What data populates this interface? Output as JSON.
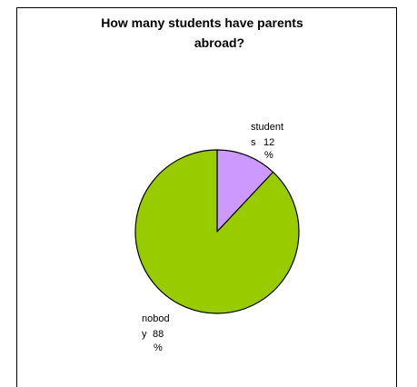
{
  "chart_data": {
    "type": "pie",
    "title": "How many students have parents abroad?",
    "title_lines": [
      "How many students have parents",
      "abroad?"
    ],
    "slices": [
      {
        "label": "students",
        "value": 12,
        "value_text": "12 %",
        "color": "#cc99ff",
        "label_lines": [
          "student",
          "s",
          "12",
          "%"
        ]
      },
      {
        "label": "nobody",
        "value": 88,
        "value_text": "88 %",
        "color": "#99cc00",
        "label_lines": [
          "nobod",
          "y",
          "88",
          "%"
        ]
      }
    ],
    "legend": "none",
    "grid": false
  }
}
